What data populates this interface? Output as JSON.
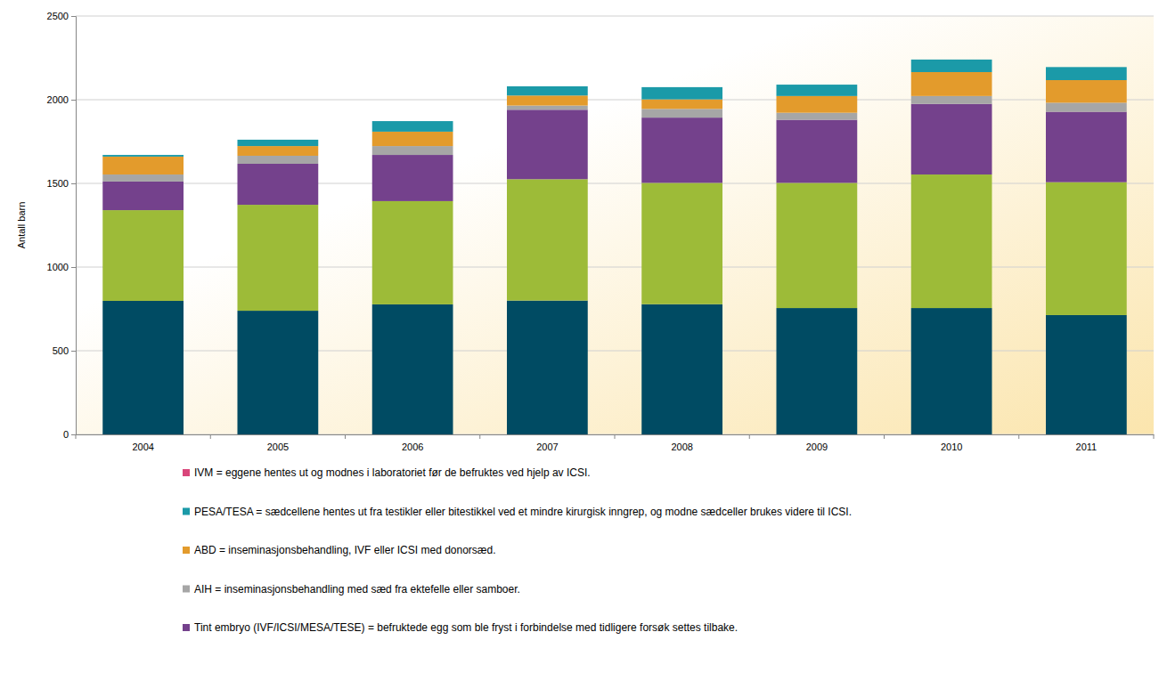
{
  "chart_data": {
    "type": "bar",
    "stacked": true,
    "grid": true,
    "legend": "bottom",
    "y_label": "Antall barn",
    "categories": [
      "2004",
      "2005",
      "2006",
      "2007",
      "2008",
      "2009",
      "2010",
      "2011"
    ],
    "ylim": [
      0,
      2500
    ],
    "yticks": [
      0,
      500,
      1000,
      1500,
      2000,
      2500
    ],
    "series": [
      {
        "color": "#004b63",
        "values": [
          798,
          739,
          777,
          800,
          778,
          755,
          755,
          713
        ]
      },
      {
        "color": "#9dbb38",
        "values": [
          542,
          633,
          617,
          725,
          725,
          748,
          798,
          794
        ]
      },
      {
        "name": "Tint embryo (IVF/ICSI/MESA/TESE) = befruktede egg som ble fryst i forbindelse med tidligere forsøk settes tilbake.",
        "color": "#74418c",
        "values": [
          171,
          245,
          276,
          415,
          390,
          377,
          422,
          421
        ]
      },
      {
        "name": "AIH = inseminasjonsbehandling med sæd fra ektefelle eller samboer.",
        "color": "#a6a6a6",
        "values": [
          42,
          48,
          53,
          25,
          52,
          42,
          47,
          54
        ]
      },
      {
        "name": "ABD = inseminasjonsbehandling, IVF eller ICSI med donorsæd.",
        "color": "#e39b2c",
        "values": [
          107,
          58,
          86,
          60,
          57,
          100,
          143,
          135
        ]
      },
      {
        "name": "PESA/TESA = sædcellene hentes ut fra testikler eller bitestikkel ved et mindre kirurgisk inngrep, og modne sædceller brukes videre til ICSI.",
        "color": "#1b9aa8",
        "values": [
          10,
          38,
          63,
          55,
          73,
          68,
          75,
          78
        ]
      },
      {
        "name": "IVM = eggene hentes ut og modnes i laboratoriet før de befruktes ved hjelp av ICSI.",
        "color": "#d9467a",
        "values": [
          0,
          0,
          0,
          0,
          0,
          0,
          0,
          0
        ]
      }
    ]
  }
}
